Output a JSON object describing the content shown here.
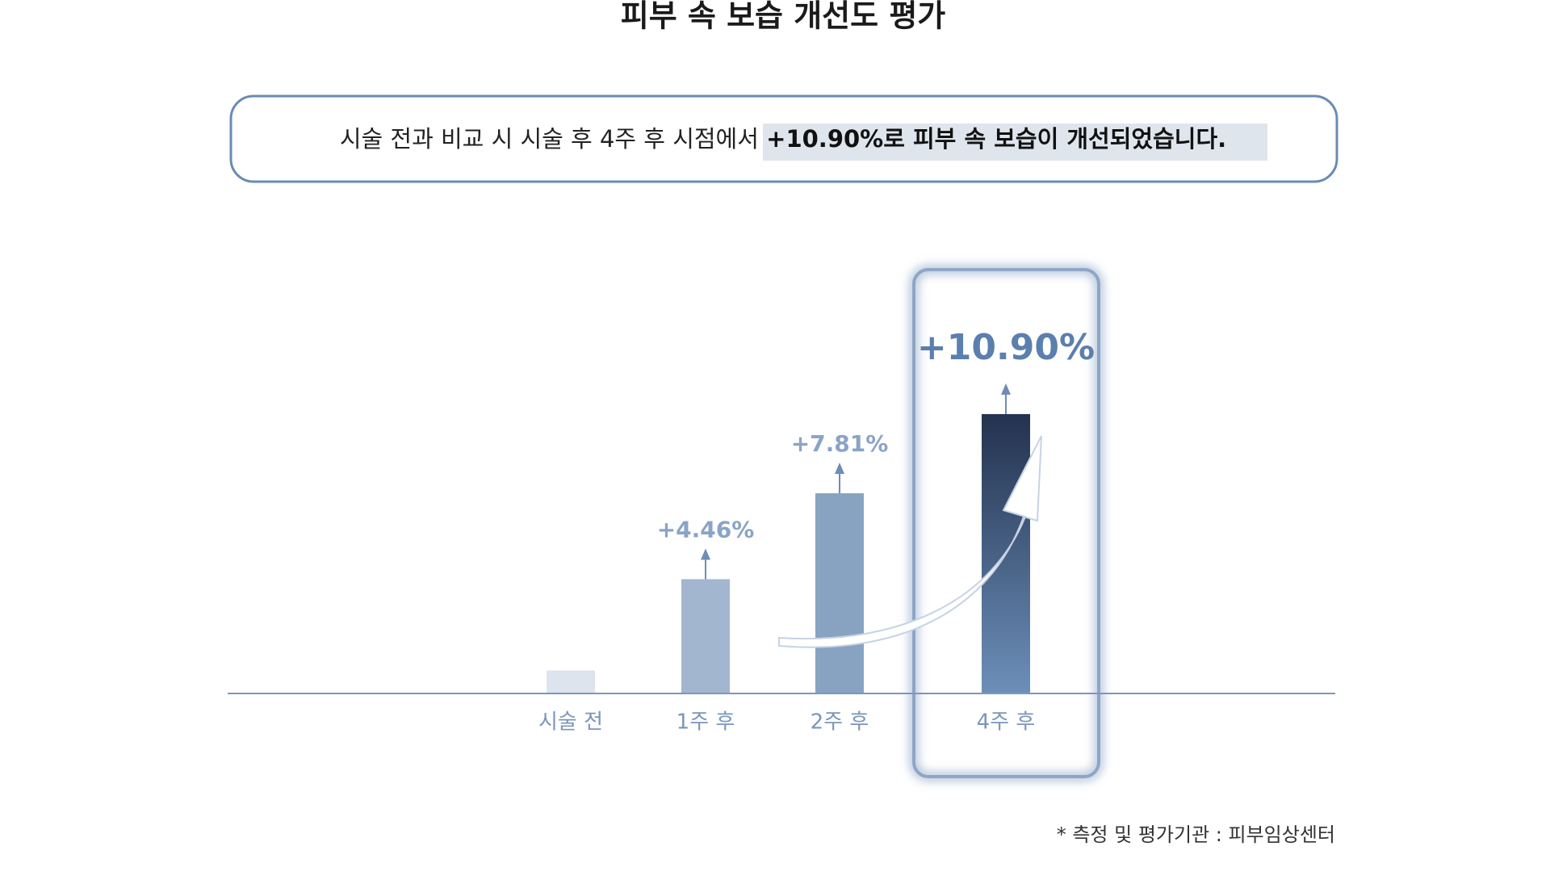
{
  "chart_data": {
    "type": "bar",
    "title": "피부 속 보습 개선도 평가",
    "summary": [
      "시술 전과 비교 시 시술 후 4주 후 시점에서 ",
      "+10.90%로 피부 속 보습이 개선되었습니다."
    ],
    "categories": [
      "시술 전",
      "1주 후",
      "2주 후",
      "4주 후"
    ],
    "values": [
      0.9,
      4.46,
      7.81,
      10.9
    ],
    "value_labels": [
      null,
      "+4.46%",
      "+7.81%",
      "+10.90%"
    ],
    "colors": [
      "#dde4ee",
      "#a3b6d0",
      "#88a3c1",
      "#3a5278"
    ],
    "ylim": [
      0,
      12
    ],
    "note": "* 측정 및 평가기관 : 피부임상센터"
  }
}
